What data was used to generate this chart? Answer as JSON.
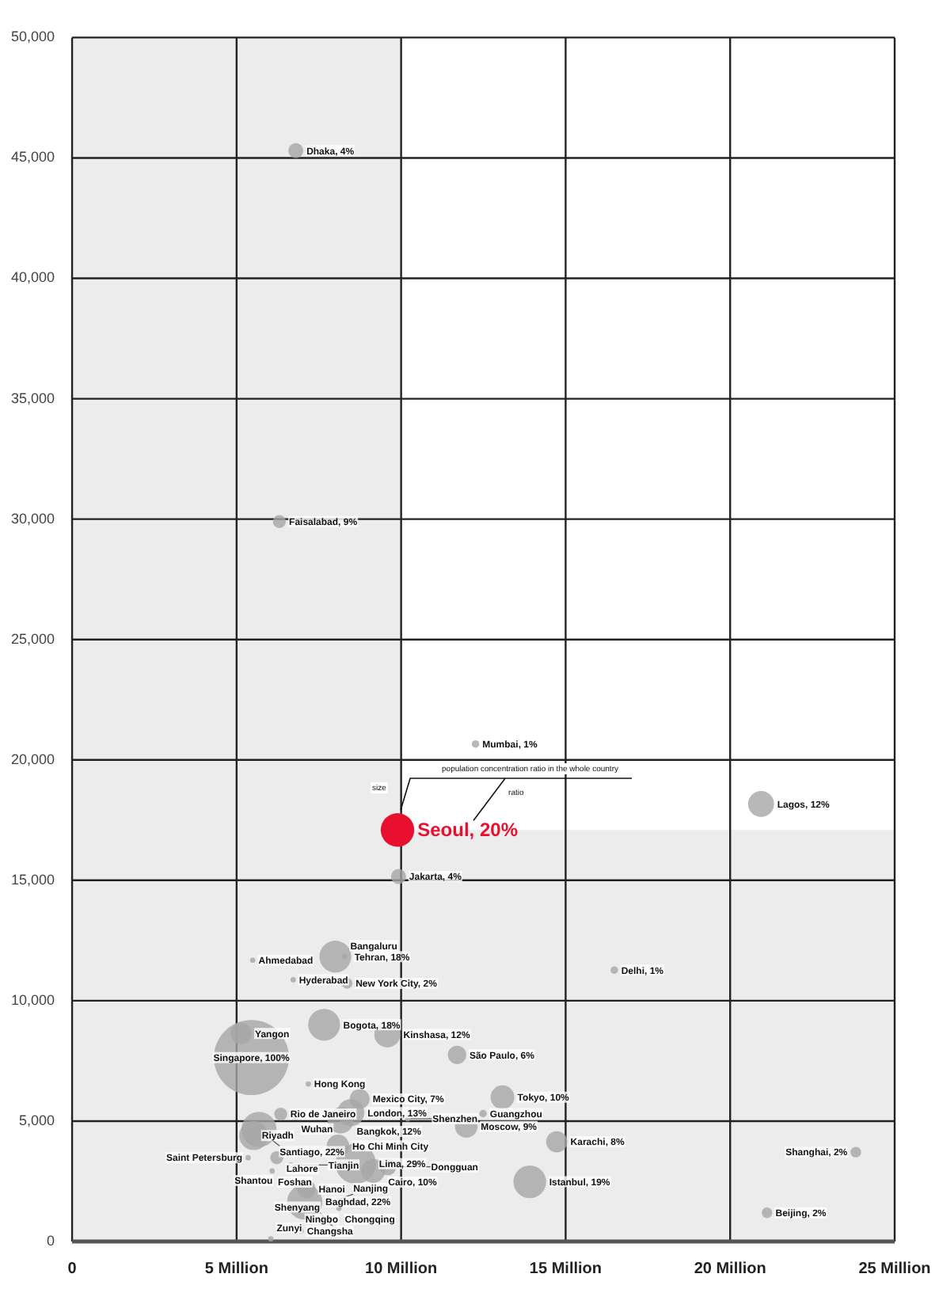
{
  "chart_data": {
    "type": "bubble",
    "x": [
      6.8,
      6.3,
      12.26,
      9.89,
      9.92,
      20.94,
      16.48,
      8.0,
      8.28,
      5.49,
      6.72,
      8.36,
      7.66,
      9.58,
      5.14,
      5.45,
      11.7,
      7.18,
      8.74,
      6.34,
      6.79,
      8.47,
      8.16,
      13.08,
      12.49,
      10.2,
      11.98,
      5.52,
      5.68,
      8.08,
      8.62,
      9.6,
      9.15,
      6.22,
      6.65,
      6.08,
      5.35,
      5.34,
      7.12,
      7.07,
      8.08,
      8.11,
      7.49,
      8.0,
      6.96,
      6.04,
      14.73,
      13.91,
      23.82,
      21.12
    ],
    "values": [
      45300,
      29900,
      20660,
      17090,
      15160,
      18170,
      11270,
      11830,
      11830,
      11680,
      10870,
      10720,
      9000,
      8600,
      8640,
      7640,
      7750,
      6540,
      5920,
      5290,
      5140,
      5350,
      5030,
      5990,
      5310,
      5100,
      4780,
      4400,
      4650,
      3970,
      3230,
      3100,
      2930,
      3480,
      3180,
      2930,
      3480,
      2530,
      2170,
      1640,
      1740,
      1380,
      940,
      510,
      430,
      110,
      4140,
      2480,
      3710,
      1190
    ],
    "sizes": [
      0.04,
      0.03,
      0.01,
      0.2,
      0.04,
      0.12,
      0.01,
      0.18,
      0.005,
      0.005,
      0.005,
      0.02,
      0.18,
      0.12,
      0.08,
      1,
      0.06,
      0.005,
      0.07,
      0.03,
      0.005,
      0.13,
      0.12,
      0.1,
      0.01,
      0.005,
      0.09,
      0.15,
      0.22,
      0.09,
      0.29,
      0.05,
      0.1,
      0.03,
      0.005,
      0.005,
      0.005,
      0.005,
      0.06,
      0.22,
      0.005,
      0.005,
      0.005,
      0.005,
      0.005,
      0.005,
      0.08,
      0.19,
      0.02,
      0.02
    ],
    "color": "#a6a6a6",
    "colors": [
      "#a6a6a6",
      "#a6a6a6",
      "#a6a6a6",
      "#e8102e",
      "#a6a6a6",
      "#a6a6a6",
      "#a6a6a6",
      "#a6a6a6",
      "#a6a6a6",
      "#a6a6a6",
      "#a6a6a6",
      "#a6a6a6",
      "#a6a6a6",
      "#a6a6a6",
      "#a6a6a6",
      "#a6a6a6",
      "#a6a6a6",
      "#a6a6a6",
      "#a6a6a6",
      "#a6a6a6",
      "#a6a6a6",
      "#a6a6a6",
      "#a6a6a6",
      "#a6a6a6",
      "#a6a6a6",
      "#a6a6a6",
      "#a6a6a6",
      "#a6a6a6",
      "#a6a6a6",
      "#a6a6a6",
      "#a6a6a6",
      "#a6a6a6",
      "#a6a6a6",
      "#a6a6a6",
      "#a6a6a6",
      "#a6a6a6",
      "#a6a6a6",
      "#a6a6a6",
      "#a6a6a6",
      "#a6a6a6",
      "#a6a6a6",
      "#a6a6a6",
      "#a6a6a6",
      "#a6a6a6",
      "#a6a6a6",
      "#a6a6a6",
      "#a6a6a6",
      "#a6a6a6",
      "#a6a6a6",
      "#a6a6a6"
    ],
    "xlim": [
      0,
      25
    ],
    "xticks": [
      0,
      {
        "value": 5,
        "label": "5 Million"
      },
      {
        "value": 10,
        "label": "10 Million"
      },
      {
        "value": 15,
        "label": "15 Million"
      },
      {
        "value": 20,
        "label": "20 Million"
      },
      {
        "value": 25,
        "label": "25 Million"
      }
    ],
    "ylim": [
      0,
      50000
    ],
    "yticks": [
      0,
      {
        "value": 5000,
        "label": "5,000"
      },
      {
        "value": 10000,
        "label": "10,000"
      },
      {
        "value": 15000,
        "label": "15,000"
      },
      {
        "value": 20000,
        "label": "20,000"
      },
      {
        "value": 25000,
        "label": "25,000"
      },
      {
        "value": 30000,
        "label": "30,000"
      },
      {
        "value": 35000,
        "label": "35,000"
      },
      {
        "value": 40000,
        "label": "40,000"
      },
      {
        "value": 45000,
        "label": "45,000"
      },
      {
        "value": 50000,
        "label": "50,000"
      }
    ],
    "bands": [
      {
        "axis": "x",
        "from": 0,
        "to": 10,
        "color": "#ececec"
      },
      {
        "axis": "y",
        "from": 0,
        "to": 17090,
        "color": "#ececec"
      }
    ],
    "annotations": [
      "population concentration ratio in the whole country",
      "size",
      "ratio",
      {
        "text": "Seoul, 20%",
        "x": 9.89,
        "y": 17090
      },
      {
        "text": "Singapore, 100%",
        "x": 5.45,
        "y": 7640
      },
      {
        "text": "Dhaka, 4%",
        "x": 6.8,
        "y": 45300
      },
      {
        "text": "Faisalabad, 9%",
        "x": 6.3,
        "y": 29900
      },
      {
        "text": "Mumbai, 1%",
        "x": 12.26,
        "y": 20660
      },
      {
        "text": "Jakarta, 4%",
        "x": 9.92,
        "y": 15160
      },
      {
        "text": "Lagos, 12%",
        "x": 20.94,
        "y": 18170
      },
      {
        "text": "Delhi, 1%",
        "x": 16.48,
        "y": 11270
      },
      {
        "text": "Tehran, 18%",
        "x": 8.0,
        "y": 11830
      },
      {
        "text": "Bangaluru",
        "x": 8.28,
        "y": 11830
      },
      {
        "text": "Ahmedabad",
        "x": 5.49,
        "y": 11680
      },
      {
        "text": "Hyderabad",
        "x": 6.72,
        "y": 10870
      },
      {
        "text": "New York City, 2%",
        "x": 8.36,
        "y": 10720
      },
      {
        "text": "Bogota, 18%",
        "x": 7.66,
        "y": 9000
      },
      {
        "text": "Kinshasa, 12%",
        "x": 9.58,
        "y": 8600
      },
      {
        "text": "Yangon",
        "x": 5.14,
        "y": 8640
      },
      {
        "text": "São Paulo, 6%",
        "x": 11.7,
        "y": 7750
      },
      {
        "text": "Hong Kong",
        "x": 7.18,
        "y": 6540
      },
      {
        "text": "Mexico City, 7%",
        "x": 8.74,
        "y": 5920
      },
      {
        "text": "Rio de Janeiro",
        "x": 6.34,
        "y": 5290
      },
      {
        "text": "Wuhan",
        "x": 6.79,
        "y": 5140
      },
      {
        "text": "London, 13%",
        "x": 8.47,
        "y": 5350
      },
      {
        "text": "Bangkok, 12%",
        "x": 8.16,
        "y": 5030
      },
      {
        "text": "Tokyo, 10%",
        "x": 13.08,
        "y": 5990
      },
      {
        "text": "Guangzhou",
        "x": 12.49,
        "y": 5310
      },
      {
        "text": "Shenzhen",
        "x": 10.2,
        "y": 5100
      },
      {
        "text": "Moscow, 9%",
        "x": 11.98,
        "y": 4780
      },
      {
        "text": "Riyadh",
        "x": 5.52,
        "y": 4400
      },
      {
        "text": "Santiago, 22%",
        "x": 5.68,
        "y": 4650
      },
      {
        "text": "Ho Chi Minh City",
        "x": 8.08,
        "y": 3970
      },
      {
        "text": "Lima, 29%",
        "x": 8.62,
        "y": 3230
      },
      {
        "text": "Dongguan",
        "x": 9.6,
        "y": 3100
      },
      {
        "text": "Cairo, 10%",
        "x": 9.15,
        "y": 2930
      },
      {
        "text": "Lahore",
        "x": 6.22,
        "y": 3480
      },
      {
        "text": "Tianjin",
        "x": 6.65,
        "y": 3180
      },
      {
        "text": "Foshan",
        "x": 6.08,
        "y": 2930
      },
      {
        "text": "Saint Petersburg",
        "x": 5.35,
        "y": 3480
      },
      {
        "text": "Shantou",
        "x": 5.34,
        "y": 2530
      },
      {
        "text": "Hanoi",
        "x": 7.12,
        "y": 2170
      },
      {
        "text": "Baghdad, 22%",
        "x": 7.07,
        "y": 1640
      },
      {
        "text": "Nanjing",
        "x": 8.08,
        "y": 1740
      },
      {
        "text": "Chongqing",
        "x": 8.11,
        "y": 1380
      },
      {
        "text": "Ningbo",
        "x": 7.49,
        "y": 940
      },
      {
        "text": "Shenyang",
        "x": 8.0,
        "y": 510
      },
      {
        "text": "Changsha",
        "x": 6.96,
        "y": 430
      },
      {
        "text": "Zunyi",
        "x": 6.04,
        "y": 110
      },
      {
        "text": "Karachi, 8%",
        "x": 14.73,
        "y": 4140
      },
      {
        "text": "Istanbul, 19%",
        "x": 13.91,
        "y": 2480
      },
      {
        "text": "Shanghai, 2%",
        "x": 23.82,
        "y": 3710
      },
      {
        "text": "Beijing, 2%",
        "x": 21.12,
        "y": 1190
      }
    ],
    "grid": true,
    "legend": false
  }
}
